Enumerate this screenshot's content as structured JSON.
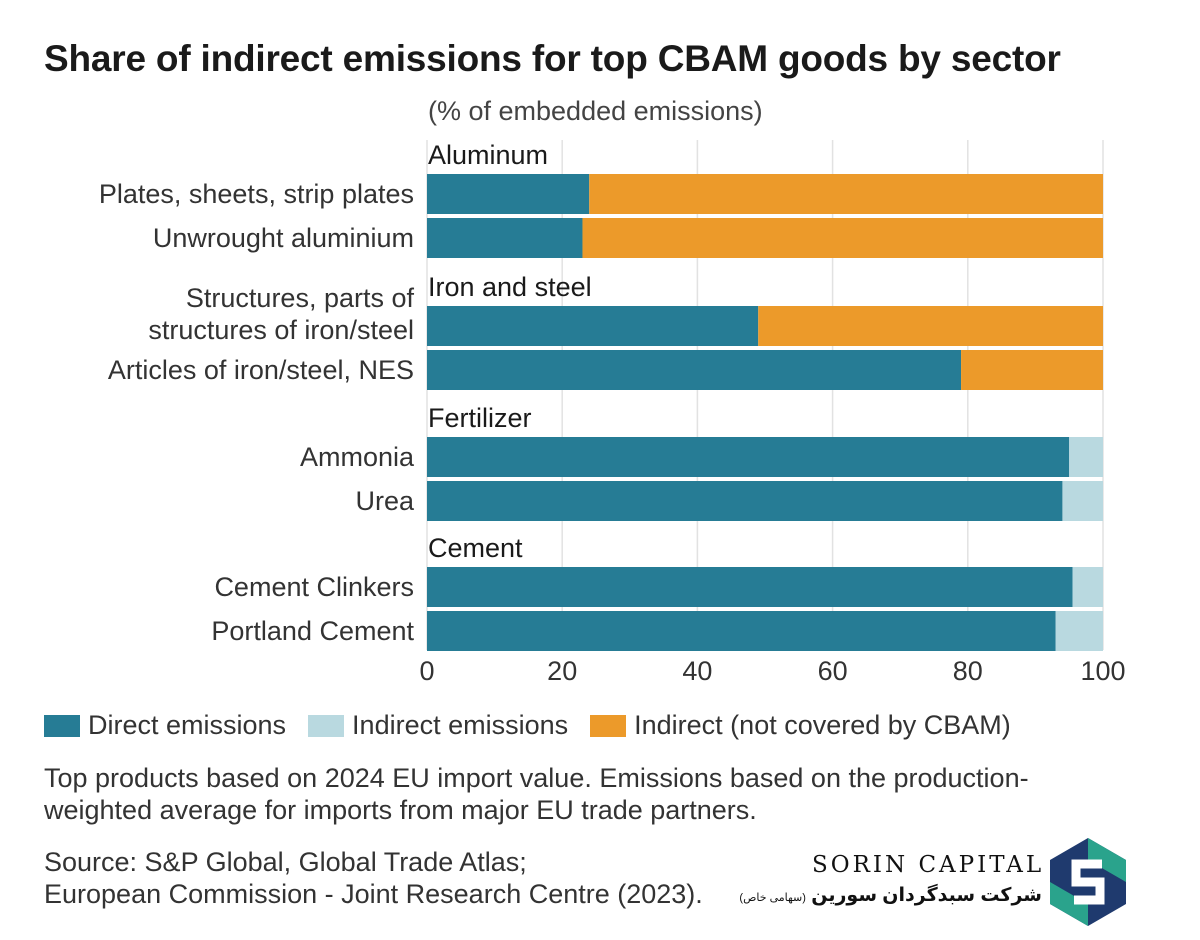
{
  "title": "Share of indirect emissions for top CBAM goods by sector",
  "subtitle": "(% of embedded emissions)",
  "colors": {
    "direct": "#267c95",
    "indirect": "#b9d9e0",
    "not_covered": "#ec9a2a",
    "grid": "#e2e2e2",
    "text": "#333333"
  },
  "chart_data": {
    "type": "bar",
    "orientation": "horizontal",
    "stacked": true,
    "xlim": [
      0,
      100
    ],
    "ticks": [
      0,
      20,
      40,
      60,
      80,
      100
    ],
    "tick_labels": [
      "0",
      "20",
      "40",
      "60",
      "80",
      "100"
    ],
    "groups": [
      {
        "name": "Aluminum",
        "items": [
          {
            "label": "Plates, sheets, strip plates",
            "direct": 24,
            "indirect": 0,
            "not_covered": 76
          },
          {
            "label": "Unwrought aluminium",
            "direct": 23,
            "indirect": 0,
            "not_covered": 77
          }
        ]
      },
      {
        "name": "Iron and steel",
        "items": [
          {
            "label": "Structures, parts of\nstructures of iron/steel",
            "direct": 49,
            "indirect": 0,
            "not_covered": 51
          },
          {
            "label": "Articles of iron/steel, NES",
            "direct": 79,
            "indirect": 0,
            "not_covered": 21
          }
        ]
      },
      {
        "name": "Fertilizer",
        "items": [
          {
            "label": "Ammonia",
            "direct": 95,
            "indirect": 5,
            "not_covered": 0
          },
          {
            "label": "Urea",
            "direct": 94,
            "indirect": 6,
            "not_covered": 0
          }
        ]
      },
      {
        "name": "Cement",
        "items": [
          {
            "label": "Cement Clinkers",
            "direct": 95.5,
            "indirect": 4.5,
            "not_covered": 0
          },
          {
            "label": "Portland Cement",
            "direct": 93,
            "indirect": 7,
            "not_covered": 0
          }
        ]
      }
    ],
    "legend": [
      {
        "key": "direct",
        "label": "Direct emissions"
      },
      {
        "key": "indirect",
        "label": "Indirect emissions"
      },
      {
        "key": "not_covered",
        "label": "Indirect (not covered by CBAM)"
      }
    ]
  },
  "note": "Top products based on 2024 EU import value. Emissions based on the production-weighted average for imports from major EU trade partners.",
  "source_line1": "Source: S&P Global, Global Trade Atlas;",
  "source_line2": "European Commission - Joint Research Centre (2023).",
  "brand": {
    "name": "SORIN CAPITAL",
    "persian": "شرکت سبدگردان سورین",
    "persian_small": "(سهامی خاص)"
  }
}
